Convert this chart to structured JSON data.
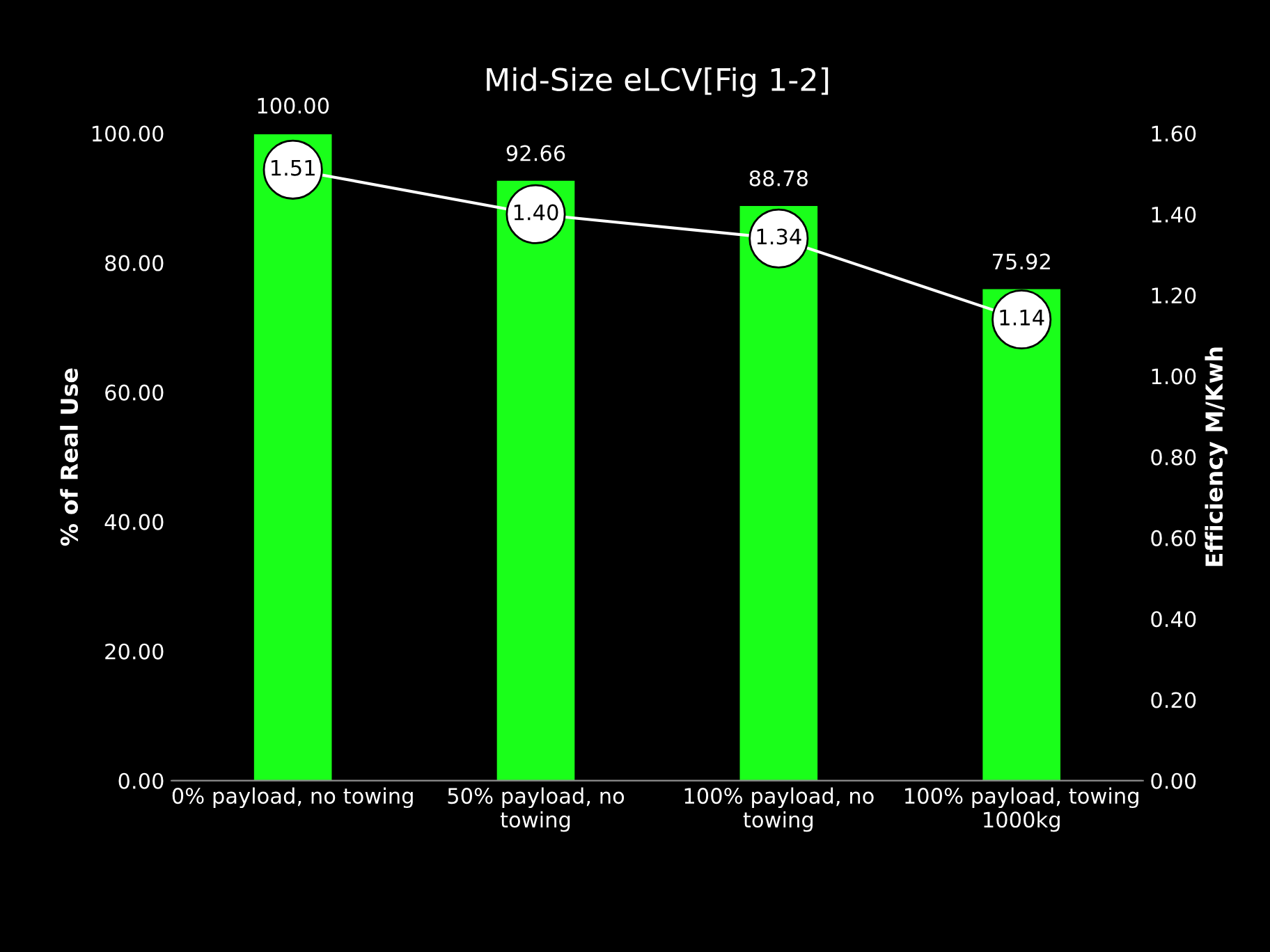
{
  "chart_data": {
    "type": "bar",
    "title": "Mid-Size eLCV[Fig 1-2]",
    "ylabel": "% of Real Use",
    "y2label": "Efficiency M/Kwh",
    "categories": [
      "0% payload, no towing",
      "50% payload, no\ntowing",
      "100% payload, no\ntowing",
      "100% payload, towing\n1000kg"
    ],
    "series": [
      {
        "color": "#1aff1a",
        "values": [
          100.0,
          92.66,
          88.78,
          75.92
        ],
        "value_labels": [
          "100.00",
          "92.66",
          "88.78",
          "75.92"
        ]
      },
      {
        "type": "line",
        "axis": "y2",
        "color": "#ffffff",
        "marker": "circle",
        "values": [
          1.51,
          1.4,
          1.34,
          1.14
        ],
        "value_labels": [
          "1.51",
          "1.40",
          "1.34",
          "1.14"
        ]
      }
    ],
    "ylim": [
      0,
      100
    ],
    "yticks": [
      {
        "value": 0,
        "label": "0.00"
      },
      {
        "value": 20,
        "label": "20.00"
      },
      {
        "value": 40,
        "label": "40.00"
      },
      {
        "value": 60,
        "label": "60.00"
      },
      {
        "value": 80,
        "label": "80.00"
      },
      {
        "value": 100,
        "label": "100.00"
      }
    ],
    "y2lim": [
      0,
      1.6
    ],
    "y2ticks": [
      {
        "value": 0,
        "label": "0.00"
      },
      {
        "value": 0.2,
        "label": "0.20"
      },
      {
        "value": 0.4,
        "label": "0.40"
      },
      {
        "value": 0.6,
        "label": "0.60"
      },
      {
        "value": 0.8,
        "label": "0.80"
      },
      {
        "value": 1.0,
        "label": "1.00"
      },
      {
        "value": 1.2,
        "label": "1.20"
      },
      {
        "value": 1.4,
        "label": "1.40"
      },
      {
        "value": 1.6,
        "label": "1.60"
      }
    ],
    "grid": false,
    "legend": false
  }
}
